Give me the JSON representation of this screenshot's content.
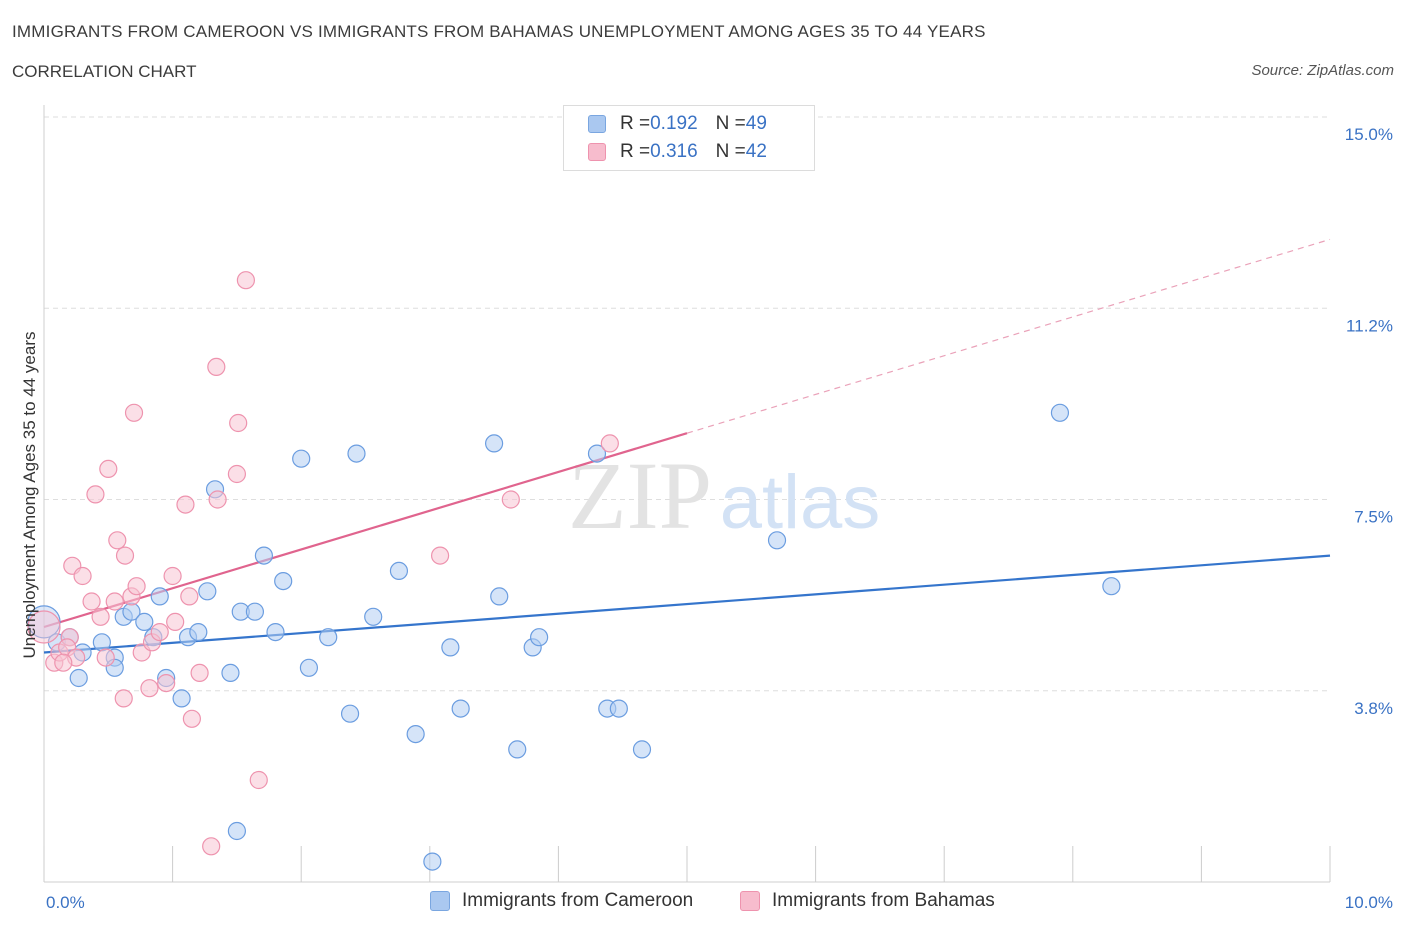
{
  "header": {
    "title": "IMMIGRANTS FROM CAMEROON VS IMMIGRANTS FROM BAHAMAS UNEMPLOYMENT AMONG AGES 35 TO 44 YEARS",
    "subtitle": "CORRELATION CHART",
    "source": "Source: ZipAtlas.com"
  },
  "watermark": {
    "part1": "ZIP",
    "part2": "atlas"
  },
  "legend": {
    "rows": [
      {
        "r_label": "R = ",
        "r_value": "0.192",
        "n_label": "N = ",
        "n_value": "49",
        "color": "#aac8f0",
        "border": "#7aa6e0"
      },
      {
        "r_label": "R = ",
        "r_value": "0.316",
        "n_label": "N = ",
        "n_value": "42",
        "color": "#f7bccd",
        "border": "#ee93ae"
      }
    ]
  },
  "bottom_legend": {
    "items": [
      {
        "label": "Immigrants from Cameroon",
        "color": "#aac8f0",
        "border": "#7aa6e0"
      },
      {
        "label": "Immigrants from Bahamas",
        "color": "#f7bccd",
        "border": "#ee93ae"
      }
    ]
  },
  "chart_data": {
    "type": "scatter",
    "xlabel": "",
    "ylabel": "Unemployment Among Ages 35 to 44 years",
    "xlim": [
      0,
      10
    ],
    "ylim": [
      0,
      15
    ],
    "x_tick_labels": [
      {
        "value": 0,
        "label": "0.0%"
      },
      {
        "value": 10,
        "label": "10.0%"
      }
    ],
    "y_tick_labels": [
      {
        "value": 3.75,
        "label": "3.8%"
      },
      {
        "value": 7.5,
        "label": "7.5%"
      },
      {
        "value": 11.25,
        "label": "11.2%"
      },
      {
        "value": 15,
        "label": "15.0%"
      }
    ],
    "grid": true,
    "legend_position": "top-center",
    "series": [
      {
        "name": "Immigrants from Cameroon",
        "color": "#6b9de0",
        "fill": "#b3cdf2",
        "trend": {
          "x0": 0,
          "y0": 4.5,
          "x1": 10,
          "y1": 6.4,
          "color": "#3575cc"
        },
        "points": [
          [
            0.0,
            5.1
          ],
          [
            0.1,
            4.7
          ],
          [
            0.2,
            4.8
          ],
          [
            0.3,
            4.5
          ],
          [
            0.27,
            4.0
          ],
          [
            0.45,
            4.7
          ],
          [
            0.55,
            4.4
          ],
          [
            0.62,
            5.2
          ],
          [
            0.55,
            4.2
          ],
          [
            0.68,
            5.3
          ],
          [
            0.78,
            5.1
          ],
          [
            0.85,
            4.8
          ],
          [
            0.9,
            5.6
          ],
          [
            0.95,
            4.0
          ],
          [
            1.07,
            3.6
          ],
          [
            1.12,
            4.8
          ],
          [
            1.2,
            4.9
          ],
          [
            1.27,
            5.7
          ],
          [
            1.33,
            7.7
          ],
          [
            1.45,
            4.1
          ],
          [
            1.53,
            5.3
          ],
          [
            1.64,
            5.3
          ],
          [
            1.71,
            6.4
          ],
          [
            1.8,
            4.9
          ],
          [
            1.86,
            5.9
          ],
          [
            2.0,
            8.3
          ],
          [
            2.06,
            4.2
          ],
          [
            2.21,
            4.8
          ],
          [
            2.38,
            3.3
          ],
          [
            2.43,
            8.4
          ],
          [
            2.56,
            5.2
          ],
          [
            2.76,
            6.1
          ],
          [
            2.89,
            2.9
          ],
          [
            3.16,
            4.6
          ],
          [
            3.24,
            3.4
          ],
          [
            3.5,
            8.6
          ],
          [
            3.54,
            5.6
          ],
          [
            3.68,
            2.6
          ],
          [
            3.8,
            4.6
          ],
          [
            3.85,
            4.8
          ],
          [
            4.3,
            8.4
          ],
          [
            4.38,
            3.4
          ],
          [
            4.47,
            3.4
          ],
          [
            4.65,
            2.6
          ],
          [
            5.7,
            6.7
          ],
          [
            7.9,
            9.2
          ],
          [
            8.3,
            5.8
          ],
          [
            1.5,
            1.0
          ],
          [
            3.02,
            0.4
          ]
        ]
      },
      {
        "name": "Immigrants from Bahamas",
        "color": "#ee93ae",
        "fill": "#f8c4d3",
        "trend": {
          "x0": 0,
          "y0": 5.0,
          "x1": 5.0,
          "y1": 8.8,
          "color": "#e0648e"
        },
        "trend_extension": {
          "x0": 5.0,
          "y0": 8.8,
          "x1": 10.0,
          "y1": 12.6
        },
        "points": [
          [
            0.0,
            5.0
          ],
          [
            0.08,
            4.3
          ],
          [
            0.12,
            4.5
          ],
          [
            0.2,
            4.8
          ],
          [
            0.22,
            6.2
          ],
          [
            0.3,
            6.0
          ],
          [
            0.37,
            5.5
          ],
          [
            0.4,
            7.6
          ],
          [
            0.44,
            5.2
          ],
          [
            0.48,
            4.4
          ],
          [
            0.5,
            8.1
          ],
          [
            0.55,
            5.5
          ],
          [
            0.57,
            6.7
          ],
          [
            0.62,
            3.6
          ],
          [
            0.63,
            6.4
          ],
          [
            0.68,
            5.6
          ],
          [
            0.72,
            5.8
          ],
          [
            0.7,
            9.2
          ],
          [
            0.76,
            4.5
          ],
          [
            0.82,
            3.8
          ],
          [
            0.84,
            4.7
          ],
          [
            0.9,
            4.9
          ],
          [
            0.95,
            3.9
          ],
          [
            1.0,
            6.0
          ],
          [
            1.02,
            5.1
          ],
          [
            1.1,
            7.4
          ],
          [
            1.13,
            5.6
          ],
          [
            1.15,
            3.2
          ],
          [
            1.21,
            4.1
          ],
          [
            1.3,
            0.7
          ],
          [
            1.34,
            10.1
          ],
          [
            1.35,
            7.5
          ],
          [
            1.5,
            8.0
          ],
          [
            1.51,
            9.0
          ],
          [
            1.57,
            11.8
          ],
          [
            1.67,
            2.0
          ],
          [
            3.08,
            6.4
          ],
          [
            3.63,
            7.5
          ],
          [
            4.4,
            8.6
          ],
          [
            0.18,
            4.6
          ],
          [
            0.25,
            4.4
          ],
          [
            0.15,
            4.3
          ]
        ]
      }
    ]
  }
}
